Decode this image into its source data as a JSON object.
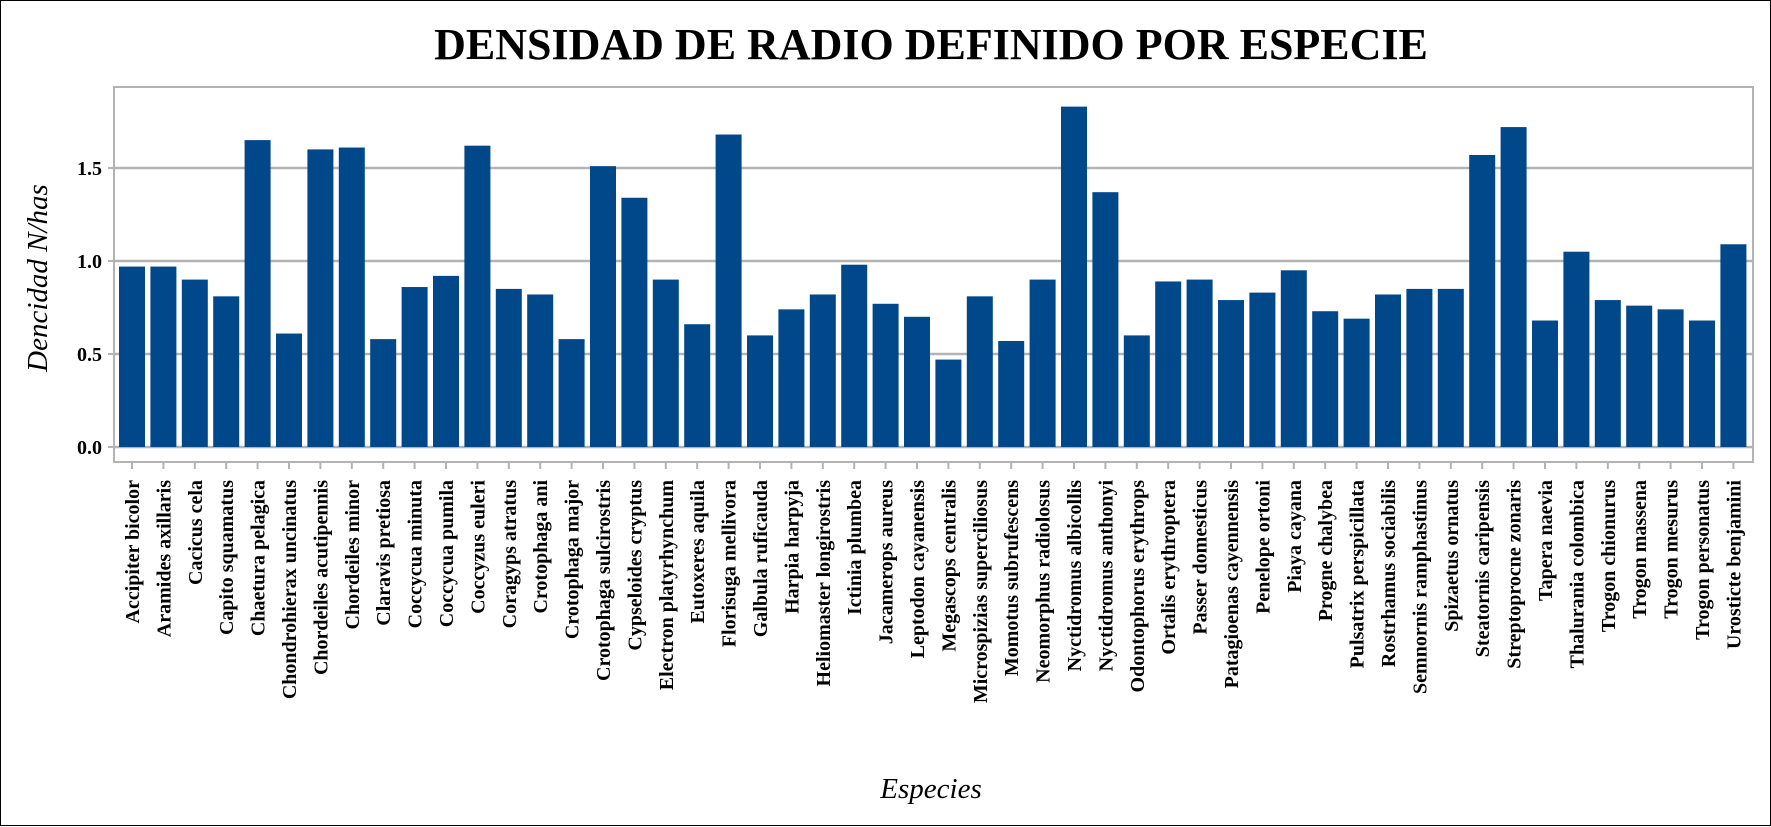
{
  "chart_data": {
    "type": "bar",
    "title": "DENSIDAD DE RADIO DEFINIDO POR ESPECIE",
    "xlabel": "Especies",
    "ylabel": "Dencidad N/has",
    "ylim": [
      0,
      1.84
    ],
    "yticks": [
      "0.0",
      "0.5",
      "1.0",
      "1.5"
    ],
    "grid": true,
    "bar_color": "#00488a",
    "categories": [
      "Accipiter bicolor",
      "Aramides axillaris",
      "Cacicus cela",
      "Capito squamatus",
      "Chaetura pelagica",
      "Chondrohierax uncinatus",
      "Chordeiles acutipennis",
      "Chordeiles minor",
      "Claravis pretiosa",
      "Coccycua minuta",
      "Coccycua pumila",
      "Coccyzus euleri",
      "Coragyps atratus",
      "Crotophaga ani",
      "Crotophaga major",
      "Crotophaga sulcirostris",
      "Cypseloides cryptus",
      "Electron platyrhynchum",
      "Eutoxeres aquila",
      "Florisuga mellivora",
      "Galbula ruficauda",
      "Harpia harpyja",
      "Heliomaster longirostris",
      "Ictinia plumbea",
      "Jacamerops aureus",
      "Leptodon cayanensis",
      "Megascops centralis",
      "Microspizias superciliosus",
      "Momotus subrufescens",
      "Neomorphus radiolosus",
      "Nyctidromus albicollis",
      "Nyctidromus anthonyi",
      "Odontophorus erythrops",
      "Ortalis erythroptera",
      "Passer domesticus",
      "Patagioenas cayennensis",
      "Penelope ortoni",
      "Piaya cayana",
      "Progne chalybea",
      "Pulsatrix perspicillata",
      "Rostrhamus sociabilis",
      "Semnornis ramphastinus",
      "Spizaetus ornatus",
      "Steatornis caripensis",
      "Streptoprocne zonaris",
      "Tapera naevia",
      "Thalurania colombica",
      "Trogon chionurus",
      "Trogon massena",
      "Trogon mesurus",
      "Trogon personatus",
      "Urosticte benjamini"
    ],
    "values": [
      0.97,
      0.97,
      0.9,
      0.81,
      1.65,
      0.61,
      1.6,
      1.61,
      0.58,
      0.86,
      0.92,
      1.62,
      0.85,
      0.82,
      0.58,
      1.51,
      1.34,
      0.9,
      0.66,
      1.68,
      0.6,
      0.74,
      0.82,
      0.98,
      0.77,
      0.7,
      0.47,
      0.81,
      0.57,
      0.9,
      1.83,
      1.37,
      0.6,
      0.89,
      0.9,
      0.79,
      0.83,
      0.95,
      0.73,
      0.69,
      0.82,
      0.85,
      0.85,
      1.57,
      1.72,
      0.68,
      1.05,
      0.79,
      0.76,
      0.74,
      0.68,
      1.09
    ]
  }
}
